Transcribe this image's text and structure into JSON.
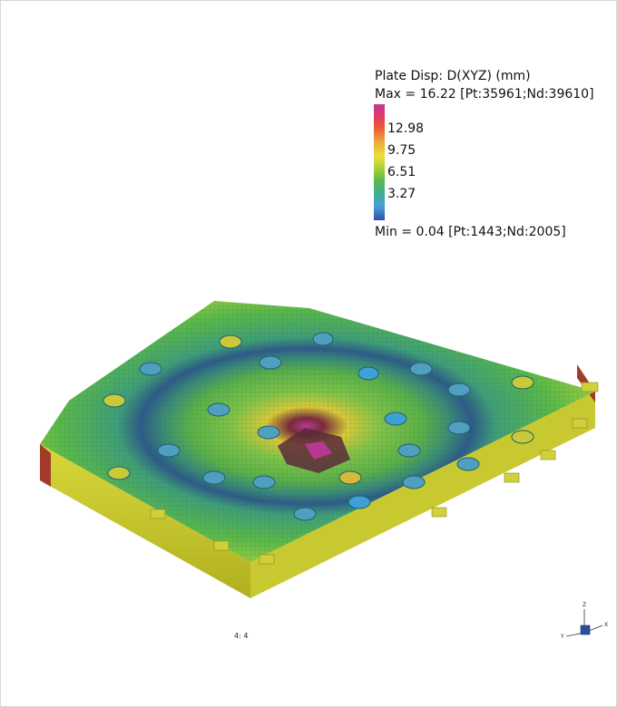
{
  "legend": {
    "title": "Plate Disp: D(XYZ) (mm)",
    "max_text": "Max = 16.22 [Pt:35961;Nd:39610]",
    "min_text": "Min = 0.04 [Pt:1443;Nd:2005]",
    "ticks": [
      "12.98",
      "9.75",
      "6.51",
      "3.27"
    ],
    "colors": [
      "#c0379b",
      "#e03a66",
      "#f0a43a",
      "#e8e23a",
      "#5ab84a",
      "#4a9ed8",
      "#2e4fa8"
    ]
  },
  "view_label": "4: 4",
  "axes": {
    "x": "X",
    "y": "Y",
    "z": "Z"
  }
}
